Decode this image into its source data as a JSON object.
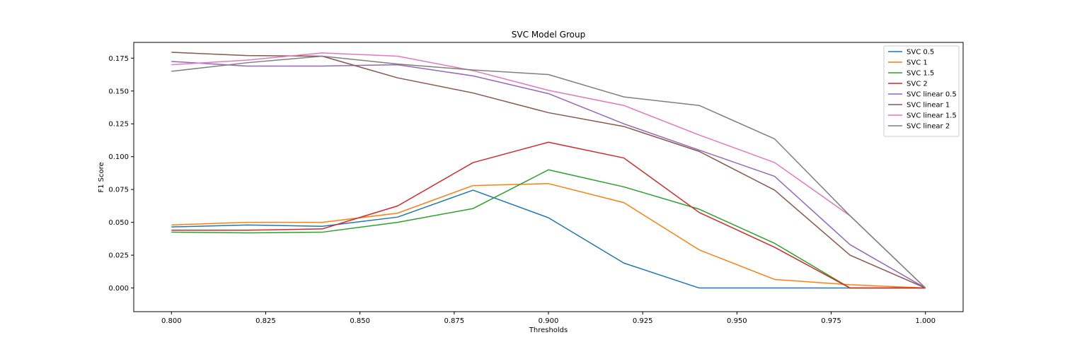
{
  "chart_data": {
    "type": "line",
    "title": "SVC Model Group",
    "xlabel": "Thresholds",
    "ylabel": "F1 Score",
    "xlim": [
      0.79,
      1.01
    ],
    "ylim": [
      -0.018,
      0.187
    ],
    "grid": false,
    "legend_position": "top-right",
    "x": [
      0.8,
      0.82,
      0.84,
      0.86,
      0.88,
      0.9,
      0.92,
      0.94,
      0.96,
      0.98,
      1.0
    ],
    "x_ticks": [
      0.8,
      0.825,
      0.85,
      0.875,
      0.9,
      0.925,
      0.95,
      0.975,
      1.0
    ],
    "x_tick_labels": [
      "0.800",
      "0.825",
      "0.850",
      "0.875",
      "0.900",
      "0.925",
      "0.950",
      "0.975",
      "1.000"
    ],
    "y_ticks": [
      0.0,
      0.025,
      0.05,
      0.075,
      0.1,
      0.125,
      0.15,
      0.175
    ],
    "y_tick_labels": [
      "0.000",
      "0.025",
      "0.050",
      "0.075",
      "0.100",
      "0.125",
      "0.150",
      "0.175"
    ],
    "series": [
      {
        "name": "SVC 0.5",
        "color": "#1f77b4",
        "values": [
          0.0465,
          0.048,
          0.047,
          0.054,
          0.0745,
          0.0535,
          0.019,
          0.0,
          0.0,
          0.0,
          0.0
        ]
      },
      {
        "name": "SVC 1",
        "color": "#ff7f0e",
        "values": [
          0.048,
          0.05,
          0.05,
          0.057,
          0.078,
          0.0795,
          0.065,
          0.029,
          0.0065,
          0.0025,
          0.0
        ]
      },
      {
        "name": "SVC 1.5",
        "color": "#2ca02c",
        "values": [
          0.0425,
          0.042,
          0.0425,
          0.05,
          0.0605,
          0.09,
          0.077,
          0.06,
          0.034,
          0.0,
          0.0
        ]
      },
      {
        "name": "SVC 2",
        "color": "#d62728",
        "values": [
          0.044,
          0.044,
          0.045,
          0.0625,
          0.0955,
          0.111,
          0.099,
          0.0575,
          0.031,
          0.0,
          0.0
        ]
      },
      {
        "name": "SVC linear 0.5",
        "color": "#9467bd",
        "values": [
          0.1725,
          0.169,
          0.169,
          0.17,
          0.1615,
          0.148,
          0.125,
          0.105,
          0.085,
          0.033,
          0.0
        ]
      },
      {
        "name": "SVC linear 1",
        "color": "#8c564b",
        "values": [
          0.1795,
          0.177,
          0.1765,
          0.16,
          0.1485,
          0.1335,
          0.123,
          0.104,
          0.0745,
          0.025,
          0.0
        ]
      },
      {
        "name": "SVC linear 1.5",
        "color": "#e377c2",
        "values": [
          0.17,
          0.1735,
          0.179,
          0.1765,
          0.1655,
          0.1505,
          0.139,
          0.1165,
          0.0955,
          0.055,
          0.0
        ]
      },
      {
        "name": "SVC linear 2",
        "color": "#7f7f7f",
        "values": [
          0.165,
          0.1715,
          0.1765,
          0.1705,
          0.166,
          0.1625,
          0.1455,
          0.139,
          0.1135,
          0.055,
          0.0
        ]
      }
    ]
  }
}
